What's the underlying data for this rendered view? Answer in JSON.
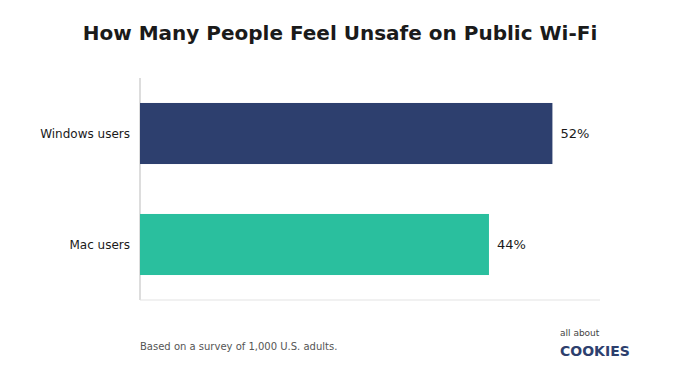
{
  "chart_data": {
    "type": "bar",
    "orientation": "horizontal",
    "title": "How Many People Feel Unsafe on Public Wi-Fi",
    "categories": [
      "Windows users",
      "Mac users"
    ],
    "values": [
      52,
      44
    ],
    "value_labels": [
      "52%",
      "44%"
    ],
    "colors": [
      "#2d3f6e",
      "#2abf9e"
    ],
    "xlim": [
      0,
      58
    ],
    "data_labels": true,
    "tick_labels": "y",
    "grid": false,
    "annotations": [
      "Based on a survey of 1,000 U.S. adults.",
      "all about",
      "COOKIES"
    ]
  }
}
